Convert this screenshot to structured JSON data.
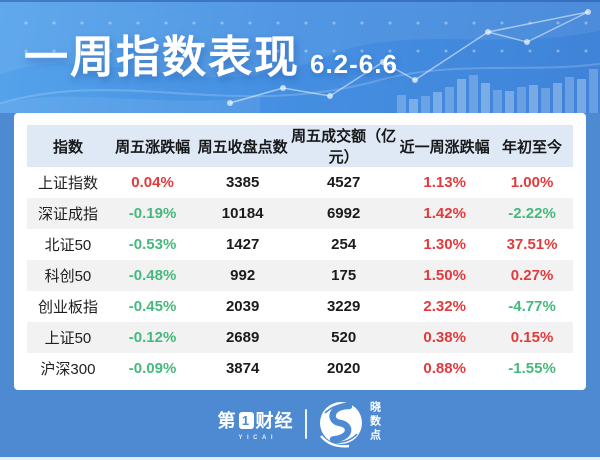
{
  "header": {
    "title": "一周指数表现",
    "subtitle": "6.2-6.6"
  },
  "table": {
    "columns": [
      "指数",
      "周五涨跌幅",
      "周五收盘点数",
      "周五成交额（亿元）",
      "近一周涨跌幅",
      "年初至今"
    ],
    "rows": [
      {
        "name": "上证指数",
        "fri_change": "0.04%",
        "fri_close": "3385",
        "fri_turnover": "4527",
        "week_change": "1.13%",
        "ytd_change": "1.00%"
      },
      {
        "name": "深证成指",
        "fri_change": "-0.19%",
        "fri_close": "10184",
        "fri_turnover": "6992",
        "week_change": "1.42%",
        "ytd_change": "-2.22%"
      },
      {
        "name": "北证50",
        "fri_change": "-0.53%",
        "fri_close": "1427",
        "fri_turnover": "254",
        "week_change": "1.30%",
        "ytd_change": "37.51%"
      },
      {
        "name": "科创50",
        "fri_change": "-0.48%",
        "fri_close": "992",
        "fri_turnover": "175",
        "week_change": "1.50%",
        "ytd_change": "0.27%"
      },
      {
        "name": "创业板指",
        "fri_change": "-0.45%",
        "fri_close": "2039",
        "fri_turnover": "3229",
        "week_change": "2.32%",
        "ytd_change": "-4.77%"
      },
      {
        "name": "上证50",
        "fri_change": "-0.12%",
        "fri_close": "2689",
        "fri_turnover": "520",
        "week_change": "0.38%",
        "ytd_change": "0.15%"
      },
      {
        "name": "沪深300",
        "fri_change": "-0.09%",
        "fri_close": "3874",
        "fri_turnover": "2020",
        "week_change": "0.88%",
        "ytd_change": "-1.55%"
      }
    ]
  },
  "footer": {
    "brand_left": {
      "prefix": "第",
      "boxed": "1",
      "suffix": "财经",
      "subtext": "YICAI"
    },
    "brand_right": {
      "text": "晓数点"
    }
  },
  "colors": {
    "up_red": "#e23a3c",
    "down_green": "#45b97c",
    "accent_blue": "#4d8ad2",
    "header_row_bg": "#dfe9f5",
    "zebra_row_bg": "#f2f2f2"
  },
  "chart_data": {
    "type": "table",
    "title": "一周指数表现 6.2-6.6",
    "columns": [
      "指数",
      "周五涨跌幅",
      "周五收盘点数",
      "周五成交额（亿元）",
      "近一周涨跌幅",
      "年初至今"
    ],
    "rows": [
      [
        "上证指数",
        "0.04%",
        3385,
        4527,
        "1.13%",
        "1.00%"
      ],
      [
        "深证成指",
        "-0.19%",
        10184,
        6992,
        "1.42%",
        "-2.22%"
      ],
      [
        "北证50",
        "-0.53%",
        1427,
        254,
        "1.30%",
        "37.51%"
      ],
      [
        "科创50",
        "-0.48%",
        992,
        175,
        "1.50%",
        "0.27%"
      ],
      [
        "创业板指",
        "-0.45%",
        2039,
        3229,
        "2.32%",
        "-4.77%"
      ],
      [
        "上证50",
        "-0.12%",
        2689,
        520,
        "0.38%",
        "0.15%"
      ],
      [
        "沪深300",
        "-0.09%",
        3874,
        2020,
        "0.88%",
        "-1.55%"
      ]
    ],
    "legend": "红色=上涨(红), 绿色=下跌(绿)"
  }
}
